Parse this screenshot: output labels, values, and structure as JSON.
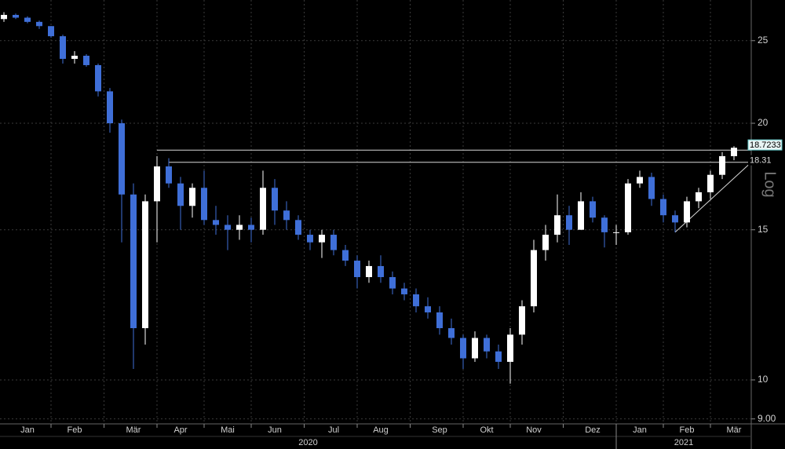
{
  "chart_data": {
    "type": "candlestick",
    "log_scale": true,
    "y_scale_label": "Log",
    "grid": true,
    "up_color": "#ffffff",
    "down_color": "#3f6fd8",
    "categories": [
      null,
      null,
      "Jan",
      null,
      null,
      null,
      "Feb",
      null,
      null,
      null,
      null,
      "Mär",
      null,
      null,
      null,
      "Apr",
      null,
      null,
      null,
      "Mai",
      null,
      null,
      null,
      "Jun",
      null,
      null,
      null,
      null,
      "Jul",
      null,
      null,
      null,
      "Aug",
      null,
      null,
      null,
      null,
      "Sep",
      null,
      null,
      null,
      "Okt",
      null,
      null,
      null,
      "Nov",
      null,
      null,
      null,
      null,
      "Dez",
      null,
      null,
      null,
      "Jan",
      null,
      null,
      null,
      "Feb",
      null,
      null,
      null,
      "Mär"
    ],
    "years": [
      "2020",
      "2021"
    ],
    "open": [
      26.5,
      26.8,
      26.6,
      26.3,
      26.0,
      25.3,
      23.8,
      24.0,
      23.4,
      21.8,
      20.0,
      16.5,
      11.5,
      16.2,
      17.8,
      17.0,
      16.0,
      16.8,
      15.4,
      15.2,
      15.0,
      15.2,
      15.0,
      16.8,
      15.8,
      15.4,
      14.8,
      14.5,
      14.8,
      14.2,
      13.8,
      13.2,
      13.6,
      13.2,
      12.8,
      12.6,
      12.2,
      12.0,
      11.5,
      11.2,
      10.6,
      11.2,
      10.8,
      10.5,
      11.3,
      12.2,
      14.2,
      14.8,
      15.6,
      15.0,
      16.2,
      15.5,
      14.9,
      14.9,
      17.0,
      17.3,
      16.3,
      15.6,
      15.3,
      16.2,
      16.6,
      17.4,
      18.3
    ],
    "high": [
      27.0,
      26.9,
      26.7,
      26.4,
      26.0,
      25.4,
      24.3,
      24.1,
      23.5,
      22.0,
      20.2,
      17.0,
      16.5,
      18.3,
      18.2,
      17.3,
      17.0,
      17.6,
      16.0,
      15.6,
      15.6,
      15.5,
      17.6,
      17.2,
      16.2,
      15.6,
      15.0,
      15.0,
      15.0,
      14.4,
      14.0,
      13.8,
      14.0,
      13.4,
      13.0,
      12.8,
      12.5,
      12.2,
      11.8,
      11.3,
      11.4,
      11.3,
      11.0,
      11.5,
      12.4,
      14.6,
      15.2,
      16.5,
      16.0,
      16.6,
      16.4,
      15.6,
      15.2,
      17.2,
      17.6,
      17.5,
      16.5,
      15.8,
      16.4,
      16.8,
      17.6,
      18.5,
      18.8
    ],
    "low": [
      26.3,
      26.5,
      26.2,
      25.8,
      25.2,
      23.5,
      23.5,
      23.3,
      21.5,
      19.5,
      14.5,
      10.3,
      11.0,
      14.5,
      16.8,
      15.0,
      15.5,
      15.2,
      14.8,
      14.2,
      14.6,
      14.5,
      14.8,
      15.2,
      15.0,
      14.6,
      14.2,
      13.9,
      14.0,
      13.6,
      12.8,
      13.0,
      13.0,
      12.6,
      12.4,
      12.0,
      11.8,
      11.3,
      11.0,
      10.3,
      10.5,
      10.6,
      10.3,
      9.9,
      11.0,
      12.0,
      13.8,
      14.5,
      14.4,
      15.0,
      15.3,
      14.3,
      14.4,
      14.8,
      16.8,
      16.0,
      15.3,
      14.9,
      15.1,
      15.9,
      16.3,
      17.2,
      18.1
    ],
    "close": [
      26.8,
      26.6,
      26.3,
      26.0,
      25.3,
      23.8,
      24.0,
      23.4,
      21.8,
      20.0,
      16.5,
      11.5,
      16.2,
      17.8,
      17.0,
      16.0,
      16.8,
      15.4,
      15.2,
      15.0,
      15.2,
      15.0,
      16.8,
      15.8,
      15.4,
      14.8,
      14.5,
      14.8,
      14.2,
      13.8,
      13.2,
      13.6,
      13.2,
      12.8,
      12.6,
      12.2,
      12.0,
      11.5,
      11.2,
      10.6,
      11.2,
      10.8,
      10.5,
      11.3,
      12.2,
      14.2,
      14.8,
      15.6,
      15.0,
      16.2,
      15.5,
      14.9,
      14.9,
      17.0,
      17.3,
      16.3,
      15.6,
      15.3,
      16.2,
      16.6,
      17.4,
      18.3,
      18.72
    ],
    "ylim": [
      8.88,
      27.9
    ],
    "yticks": [
      {
        "value": 9,
        "label": "9.00"
      },
      10,
      15,
      20,
      25
    ],
    "price_tags": [
      18.7233,
      18.31
    ],
    "trend_lines": [
      {
        "start": 13,
        "start_value": 18.6,
        "end_value": 18.6
      },
      {
        "start": 14,
        "start_value": 18.0,
        "end_value": 18.0
      },
      {
        "start": 57,
        "start_value": 14.9,
        "end_value": 18.0
      }
    ]
  }
}
